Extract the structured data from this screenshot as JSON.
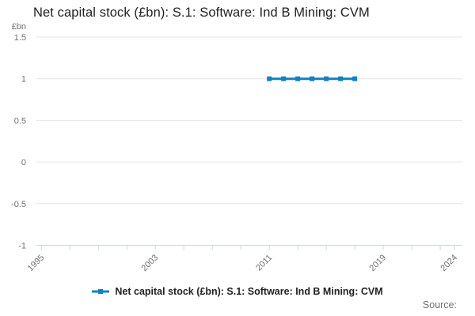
{
  "chart_data": {
    "type": "line",
    "title": "Net capital stock (£bn): S.1: Software: Ind B Mining: CVM",
    "unit_label": "£bn",
    "x": [
      2011,
      2012,
      2013,
      2014,
      2015,
      2016,
      2017
    ],
    "series": [
      {
        "name": "Net capital stock (£bn): S.1: Software: Ind B Mining: CVM",
        "values": [
          1,
          1,
          1,
          1,
          1,
          1,
          1
        ]
      }
    ],
    "xlim": [
      1994.65,
      2024.55
    ],
    "ylim": [
      -1,
      1.5
    ],
    "y_ticks": [
      1.5,
      1,
      0.5,
      0,
      -0.5,
      -1
    ],
    "y_tick_labels": [
      "1.5",
      "1",
      "0.5",
      "0",
      "-0.5",
      "-1"
    ],
    "x_ticks": [
      1995,
      1997,
      1999,
      2001,
      2003,
      2005,
      2007,
      2009,
      2011,
      2013,
      2015,
      2017,
      2019,
      2021,
      2023,
      2024
    ],
    "x_tick_labels": [
      "1995",
      "2003",
      "2011",
      "2019",
      "2024"
    ],
    "grid": true,
    "legend_position": "bottom",
    "colors": {
      "line": "#1181c1",
      "grid": "#e6e6e6",
      "axis": "#ccd6e4",
      "label": "#707070",
      "title": "#222222"
    }
  },
  "footer": {
    "source_label": "Source:"
  }
}
